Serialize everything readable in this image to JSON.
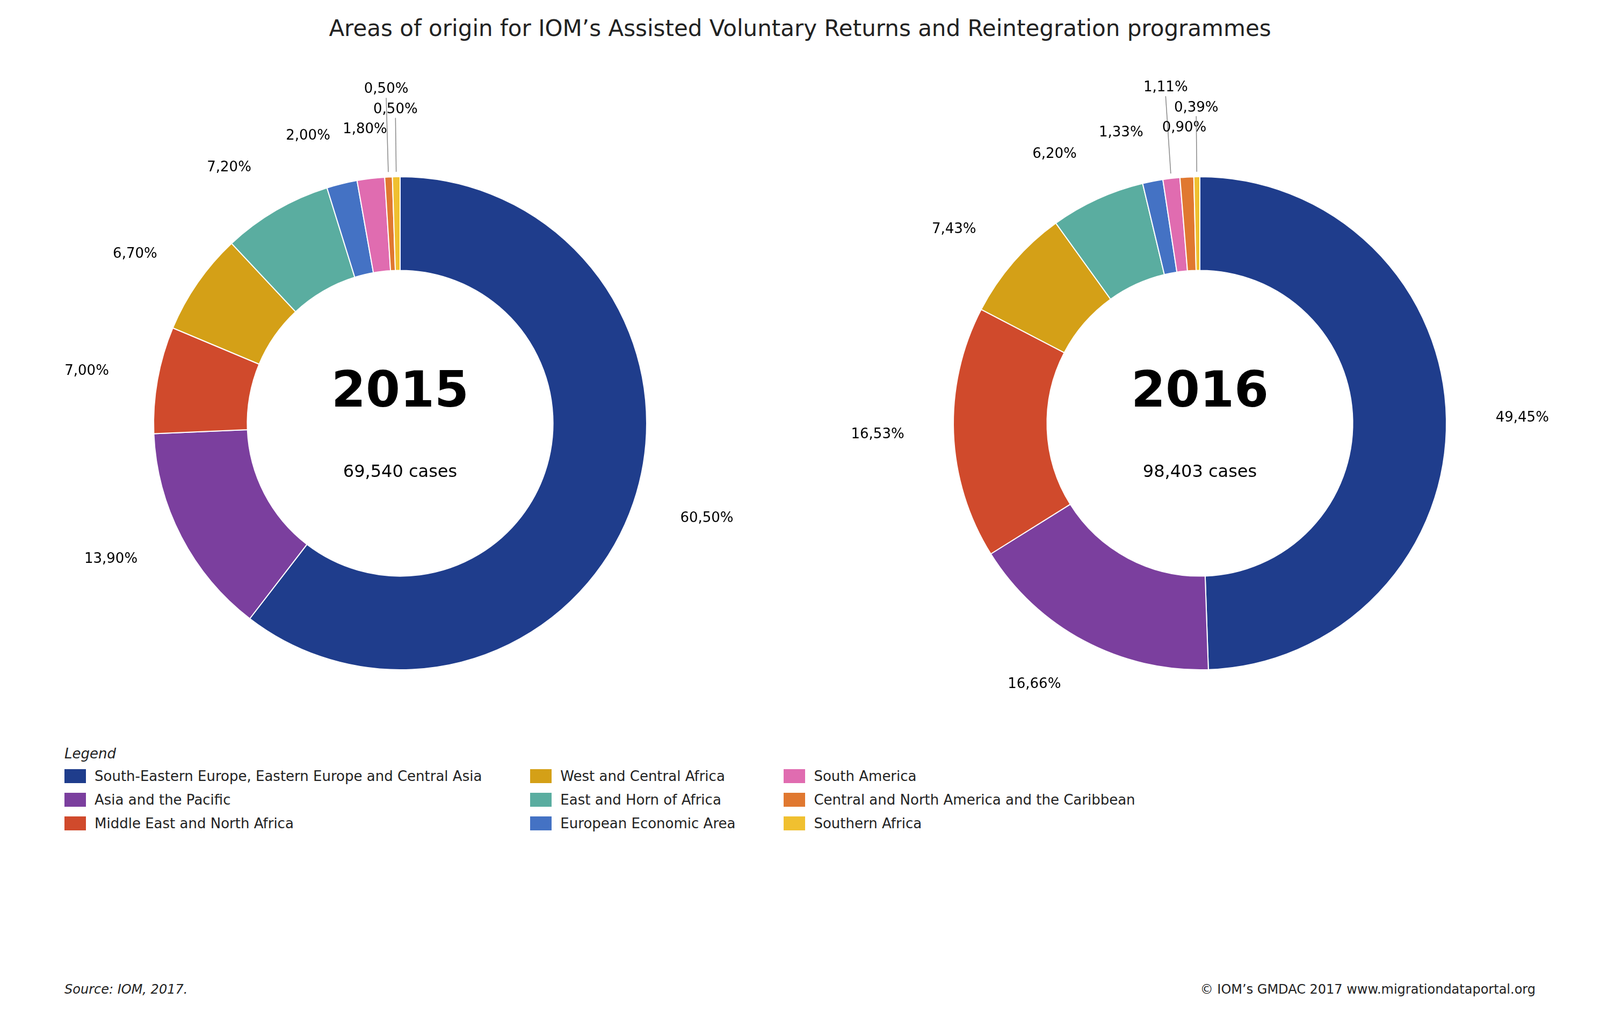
{
  "title": "Areas of origin for IOM’s Assisted Voluntary Returns and Reintegration programmes",
  "annotations": [
    "Legend",
    "Source: IOM, 2017.",
    "© IOM’s GMDAC 2017  www.migrationdataportal.org"
  ],
  "legend": "bottom",
  "chart_data": [
    {
      "type": "doughnut",
      "annotations": [
        "2015",
        "69,540 cases"
      ],
      "categories": [
        "South-Eastern Europe, Eastern Europe and Central Asia",
        "Asia and the Pacific",
        "Middle East and North Africa",
        "West and Central Africa",
        "East and Horn of Africa",
        "European Economic Area",
        "South America",
        "Central and North America and the Caribbean",
        "Southern Africa"
      ],
      "values": [
        60.5,
        13.9,
        7.0,
        6.7,
        7.2,
        2.0,
        1.8,
        0.5,
        0.5
      ],
      "value_labels": [
        "60,50%",
        "13,90%",
        "7,00%",
        "6,70%",
        "7,20%",
        "2,00%",
        "1,80%",
        "0,50%",
        "0,50%"
      ],
      "colors": [
        "#1f3d8c",
        "#7b3f9e",
        "#d04a2c",
        "#d4a017",
        "#5aada0",
        "#4472c4",
        "#e06cb0",
        "#e07830",
        "#f0c030"
      ],
      "data_labels": true
    },
    {
      "type": "doughnut",
      "annotations": [
        "2016",
        "98,403 cases"
      ],
      "categories": [
        "South-Eastern Europe, Eastern Europe and Central Asia",
        "Asia and the Pacific",
        "Middle East and North Africa",
        "West and Central Africa",
        "East and Horn of Africa",
        "European Economic Area",
        "South America",
        "Central and North America and the Caribbean",
        "Southern Africa"
      ],
      "values": [
        49.45,
        16.66,
        16.53,
        7.43,
        6.2,
        1.33,
        1.11,
        0.9,
        0.39
      ],
      "value_labels": [
        "49,45%",
        "16,66%",
        "16,53%",
        "7,43%",
        "6,20%",
        "1,33%",
        "1,11%",
        "0,90%",
        "0,39%"
      ],
      "colors": [
        "#1f3d8c",
        "#7b3f9e",
        "#d04a2c",
        "#d4a017",
        "#5aada0",
        "#4472c4",
        "#e06cb0",
        "#e07830",
        "#f0c030"
      ],
      "data_labels": true
    }
  ]
}
